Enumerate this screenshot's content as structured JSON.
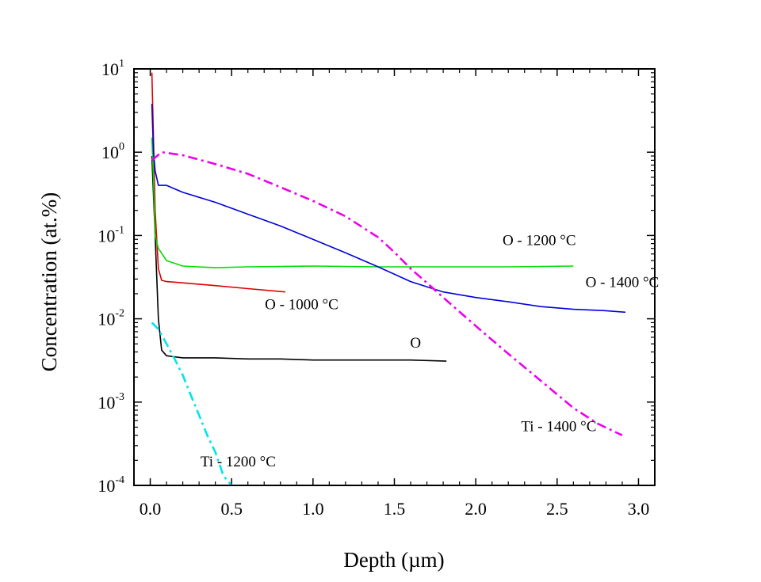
{
  "chart_data": {
    "type": "line",
    "xlabel": "Depth (µm)",
    "ylabel": "Concentration (at.%)",
    "xlim": [
      -0.1,
      3.1
    ],
    "ylim": [
      0.0001,
      10
    ],
    "yscale": "log",
    "grid": false,
    "x_ticks": [
      {
        "value": 0.0,
        "label": "0.0"
      },
      {
        "value": 0.5,
        "label": "0.5"
      },
      {
        "value": 1.0,
        "label": "1.0"
      },
      {
        "value": 1.5,
        "label": "1.5"
      },
      {
        "value": 2.0,
        "label": "2.0"
      },
      {
        "value": 2.5,
        "label": "2.5"
      },
      {
        "value": 3.0,
        "label": "3.0"
      }
    ],
    "y_ticks": [
      {
        "value": 10,
        "base": "10",
        "exp": "1"
      },
      {
        "value": 1,
        "base": "10",
        "exp": "0"
      },
      {
        "value": 0.1,
        "base": "10",
        "exp": "-1"
      },
      {
        "value": 0.01,
        "base": "10",
        "exp": "-2"
      },
      {
        "value": 0.001,
        "base": "10",
        "exp": "-3"
      },
      {
        "value": 0.0001,
        "base": "10",
        "exp": "-4"
      }
    ],
    "series": [
      {
        "name": "O",
        "color": "#000000",
        "dash": "solid",
        "label_at": [
          1.63,
          0.0045
        ],
        "x": [
          0.01,
          0.03,
          0.05,
          0.07,
          0.1,
          0.2,
          0.4,
          0.6,
          0.8,
          1.0,
          1.2,
          1.4,
          1.6,
          1.82
        ],
        "y": [
          0.9,
          0.1,
          0.01,
          0.0042,
          0.0036,
          0.0034,
          0.0034,
          0.0033,
          0.0033,
          0.0032,
          0.0032,
          0.0032,
          0.0032,
          0.0031
        ]
      },
      {
        "name": "O - 1000 °C",
        "color": "#dd0000",
        "dash": "solid",
        "label_at": [
          0.93,
          0.013
        ],
        "x": [
          0.01,
          0.02,
          0.03,
          0.05,
          0.07,
          0.1,
          0.2,
          0.4,
          0.6,
          0.83
        ],
        "y": [
          9,
          1.5,
          0.2,
          0.04,
          0.029,
          0.028,
          0.027,
          0.025,
          0.023,
          0.021
        ]
      },
      {
        "name": "O - 1200 °C",
        "color": "#00dd00",
        "dash": "solid",
        "label_at": [
          2.39,
          0.077
        ],
        "x": [
          0.01,
          0.02,
          0.03,
          0.05,
          0.1,
          0.2,
          0.4,
          0.6,
          1.0,
          1.4,
          1.8,
          2.2,
          2.6
        ],
        "y": [
          1.5,
          0.5,
          0.1,
          0.07,
          0.05,
          0.043,
          0.041,
          0.042,
          0.043,
          0.042,
          0.042,
          0.042,
          0.043
        ]
      },
      {
        "name": "O - 1400 °C",
        "color": "#0000dd",
        "dash": "solid",
        "label_at": [
          2.9,
          0.024
        ],
        "x": [
          0.01,
          0.02,
          0.03,
          0.05,
          0.1,
          0.2,
          0.4,
          0.6,
          0.8,
          1.0,
          1.2,
          1.4,
          1.6,
          1.8,
          2.0,
          2.2,
          2.4,
          2.6,
          2.8,
          2.92
        ],
        "y": [
          3.8,
          1.0,
          0.6,
          0.4,
          0.4,
          0.33,
          0.25,
          0.18,
          0.13,
          0.09,
          0.062,
          0.042,
          0.028,
          0.021,
          0.018,
          0.016,
          0.014,
          0.013,
          0.0125,
          0.012
        ]
      },
      {
        "name": "Ti - 1200 °C",
        "color": "#00e5e5",
        "dash": "dash-dot",
        "label_at": [
          0.54,
          0.00017
        ],
        "x": [
          0.01,
          0.05,
          0.1,
          0.15,
          0.2,
          0.25,
          0.3,
          0.35,
          0.4,
          0.45,
          0.5
        ],
        "y": [
          0.009,
          0.0075,
          0.005,
          0.0033,
          0.0021,
          0.0012,
          0.0007,
          0.0004,
          0.00025,
          0.00013,
          0.0001
        ]
      },
      {
        "name": "Ti - 1400 °C",
        "color": "#ee00ee",
        "dash": "dash-dot",
        "label_at": [
          2.51,
          0.00045
        ],
        "x": [
          0.01,
          0.07,
          0.2,
          0.4,
          0.6,
          0.8,
          1.0,
          1.2,
          1.4,
          1.5,
          1.6,
          1.7,
          1.8,
          2.0,
          2.2,
          2.4,
          2.6,
          2.75,
          2.9
        ],
        "y": [
          0.8,
          1.0,
          0.92,
          0.72,
          0.55,
          0.38,
          0.26,
          0.17,
          0.095,
          0.063,
          0.04,
          0.027,
          0.018,
          0.0082,
          0.0038,
          0.0018,
          0.00085,
          0.00055,
          0.0004
        ]
      }
    ]
  }
}
